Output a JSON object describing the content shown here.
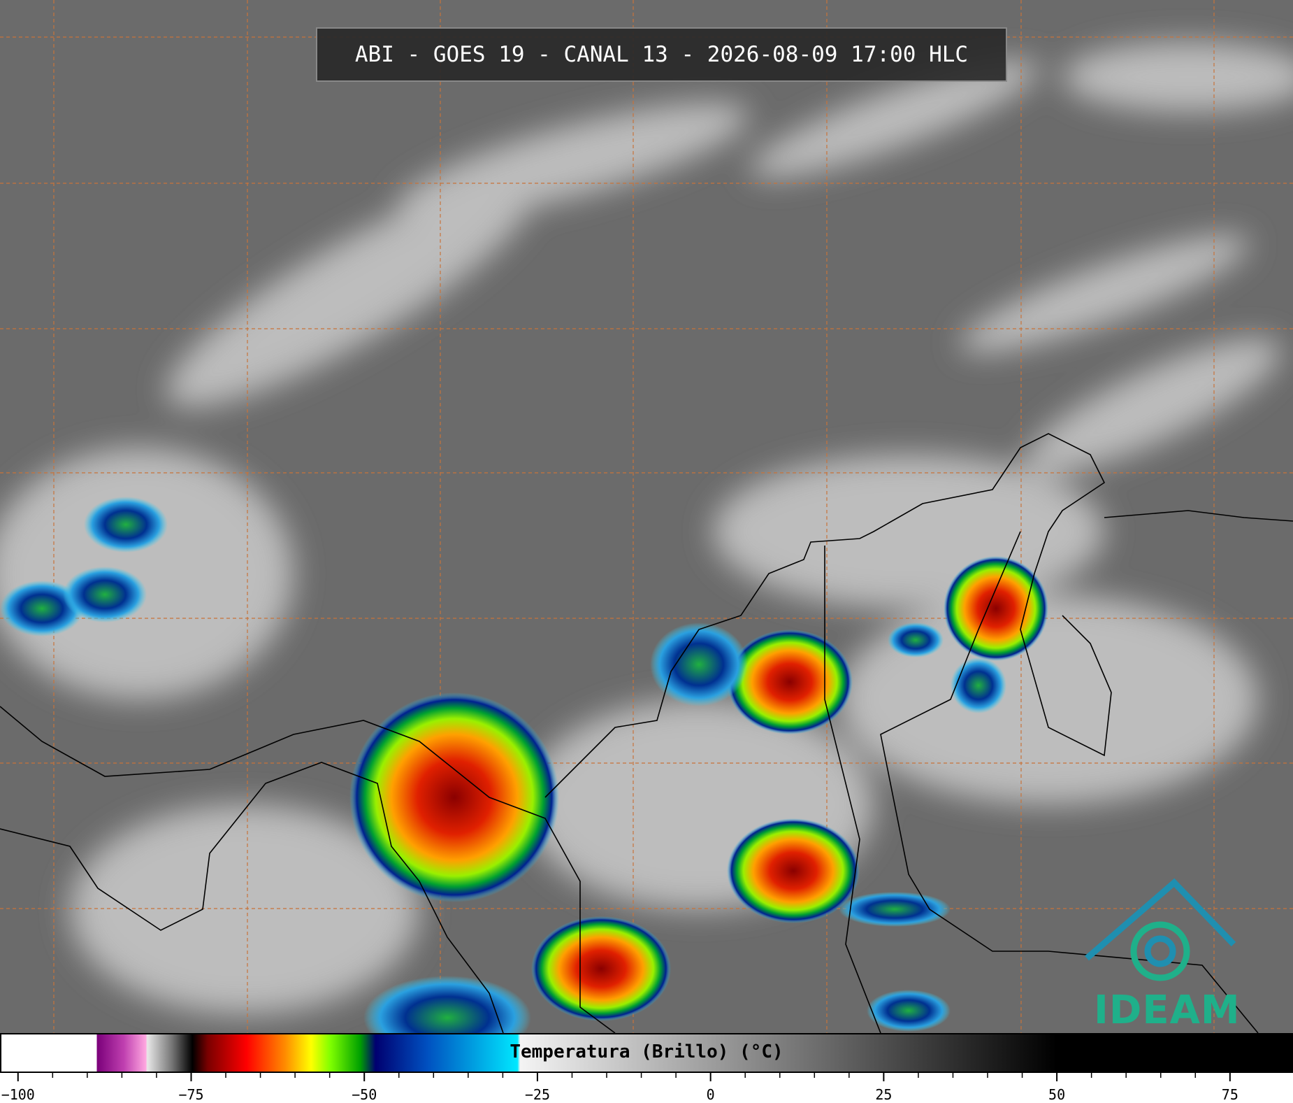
{
  "header": {
    "title": "ABI - GOES 19 - CANAL 13 - 2026-08-09 17:00 HLC"
  },
  "colorbar": {
    "label": "Temperatura (Brillo) (°C)",
    "range": [
      -102.6,
      84.1
    ],
    "ticks": [
      {
        "value": -100,
        "label": "−100"
      },
      {
        "value": -75,
        "label": "−75"
      },
      {
        "value": -50,
        "label": "−50"
      },
      {
        "value": -25,
        "label": "−25"
      },
      0,
      25,
      50,
      75
    ]
  },
  "logo": {
    "text": "IDEAM"
  }
}
